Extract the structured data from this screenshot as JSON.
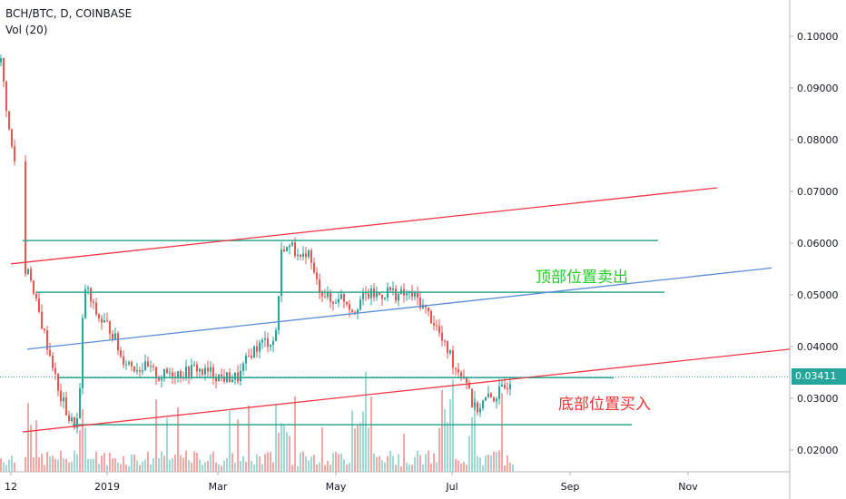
{
  "header": {
    "symbol_line": "BCH/BTC, D, COINBASE",
    "volume_line": "Vol (20)"
  },
  "price_axis": {
    "labels": [
      "0.10000",
      "0.09000",
      "0.08000",
      "0.07000",
      "0.06000",
      "0.05000",
      "0.04000",
      "0.03000",
      "0.02000"
    ],
    "current_price": "0.03411"
  },
  "time_axis": {
    "labels": [
      "12",
      "2019",
      "Mar",
      "May",
      "Jul",
      "Sep",
      "Nov"
    ]
  },
  "annotations": {
    "top_sell": "顶部位置卖出",
    "bottom_buy": "底部位置买入"
  },
  "colors": {
    "up": "#26a69a",
    "down": "#ef5350",
    "vol_up": "#9fd9d3",
    "vol_down": "#f5a6a4",
    "trend_red": "#f23645",
    "trend_blue": "#5b8dd9",
    "level_green": "#2ea88f",
    "text": "#131722"
  },
  "chart_data": {
    "type": "candlestick",
    "symbol": "BCH/BTC",
    "interval": "D",
    "exchange": "COINBASE",
    "ylim": [
      0.016,
      0.106
    ],
    "y_ticks": [
      0.02,
      0.03,
      0.04,
      0.05,
      0.06,
      0.07,
      0.08,
      0.09,
      0.1
    ],
    "x_ticks": [
      "12",
      "2019",
      "Mar",
      "May",
      "Jul",
      "Sep",
      "Nov"
    ],
    "last_price": 0.03411,
    "price_path": [
      [
        0,
        0.095
      ],
      [
        5,
        0.088
      ],
      [
        10,
        0.08
      ],
      [
        15,
        0.076
      ],
      [
        27,
        0.054
      ],
      [
        31,
        0.056
      ],
      [
        36,
        0.05
      ],
      [
        41,
        0.047
      ],
      [
        47,
        0.043
      ],
      [
        53,
        0.039
      ],
      [
        58,
        0.036
      ],
      [
        63,
        0.031
      ],
      [
        69,
        0.029
      ],
      [
        75,
        0.026
      ],
      [
        80,
        0.025
      ],
      [
        85,
        0.026
      ],
      [
        88,
        0.034
      ],
      [
        91,
        0.05
      ],
      [
        94,
        0.052
      ],
      [
        98,
        0.049
      ],
      [
        103,
        0.047
      ],
      [
        110,
        0.045
      ],
      [
        118,
        0.044
      ],
      [
        125,
        0.042
      ],
      [
        132,
        0.038
      ],
      [
        140,
        0.037
      ],
      [
        148,
        0.036
      ],
      [
        158,
        0.036
      ],
      [
        168,
        0.035
      ],
      [
        175,
        0.034
      ],
      [
        185,
        0.035
      ],
      [
        195,
        0.035
      ],
      [
        205,
        0.035
      ],
      [
        215,
        0.036
      ],
      [
        222,
        0.035
      ],
      [
        232,
        0.035
      ],
      [
        242,
        0.034
      ],
      [
        252,
        0.034
      ],
      [
        262,
        0.034
      ],
      [
        270,
        0.037
      ],
      [
        276,
        0.039
      ],
      [
        283,
        0.04
      ],
      [
        290,
        0.041
      ],
      [
        297,
        0.041
      ],
      [
        302,
        0.041
      ],
      [
        306,
        0.05
      ],
      [
        309,
        0.058
      ],
      [
        313,
        0.06
      ],
      [
        317,
        0.058
      ],
      [
        321,
        0.061
      ],
      [
        325,
        0.058
      ],
      [
        329,
        0.056
      ],
      [
        333,
        0.057
      ],
      [
        337,
        0.059
      ],
      [
        341,
        0.057
      ],
      [
        346,
        0.053
      ],
      [
        352,
        0.051
      ],
      [
        358,
        0.05
      ],
      [
        365,
        0.048
      ],
      [
        372,
        0.05
      ],
      [
        380,
        0.049
      ],
      [
        388,
        0.047
      ],
      [
        396,
        0.049
      ],
      [
        404,
        0.05
      ],
      [
        412,
        0.05
      ],
      [
        420,
        0.05
      ],
      [
        428,
        0.051
      ],
      [
        436,
        0.05
      ],
      [
        444,
        0.05
      ],
      [
        452,
        0.05
      ],
      [
        460,
        0.049
      ],
      [
        468,
        0.047
      ],
      [
        476,
        0.045
      ],
      [
        482,
        0.043
      ],
      [
        488,
        0.04
      ],
      [
        494,
        0.039
      ],
      [
        500,
        0.036
      ],
      [
        508,
        0.035
      ],
      [
        515,
        0.033
      ],
      [
        520,
        0.028
      ],
      [
        525,
        0.028
      ],
      [
        530,
        0.029
      ],
      [
        536,
        0.03
      ],
      [
        542,
        0.03
      ],
      [
        548,
        0.031
      ],
      [
        555,
        0.032
      ],
      [
        562,
        0.034
      ]
    ],
    "trend_lines": [
      {
        "color": "red",
        "from": [
          12,
          0.056
        ],
        "to": [
          790,
          0.0707
        ]
      },
      {
        "color": "red",
        "from": [
          25,
          0.0235
        ],
        "to": [
          870,
          0.0395
        ]
      },
      {
        "color": "blue",
        "from": [
          30,
          0.0395
        ],
        "to": [
          850,
          0.0552
        ]
      }
    ],
    "horizontal_levels": [
      {
        "color": "green",
        "value": 0.0605,
        "from": 25,
        "to": 725
      },
      {
        "color": "green",
        "value": 0.0505,
        "from": 40,
        "to": 732
      },
      {
        "color": "green",
        "value": 0.034,
        "from": 65,
        "to": 676
      },
      {
        "color": "green",
        "value": 0.0249,
        "from": 80,
        "to": 696
      }
    ]
  }
}
